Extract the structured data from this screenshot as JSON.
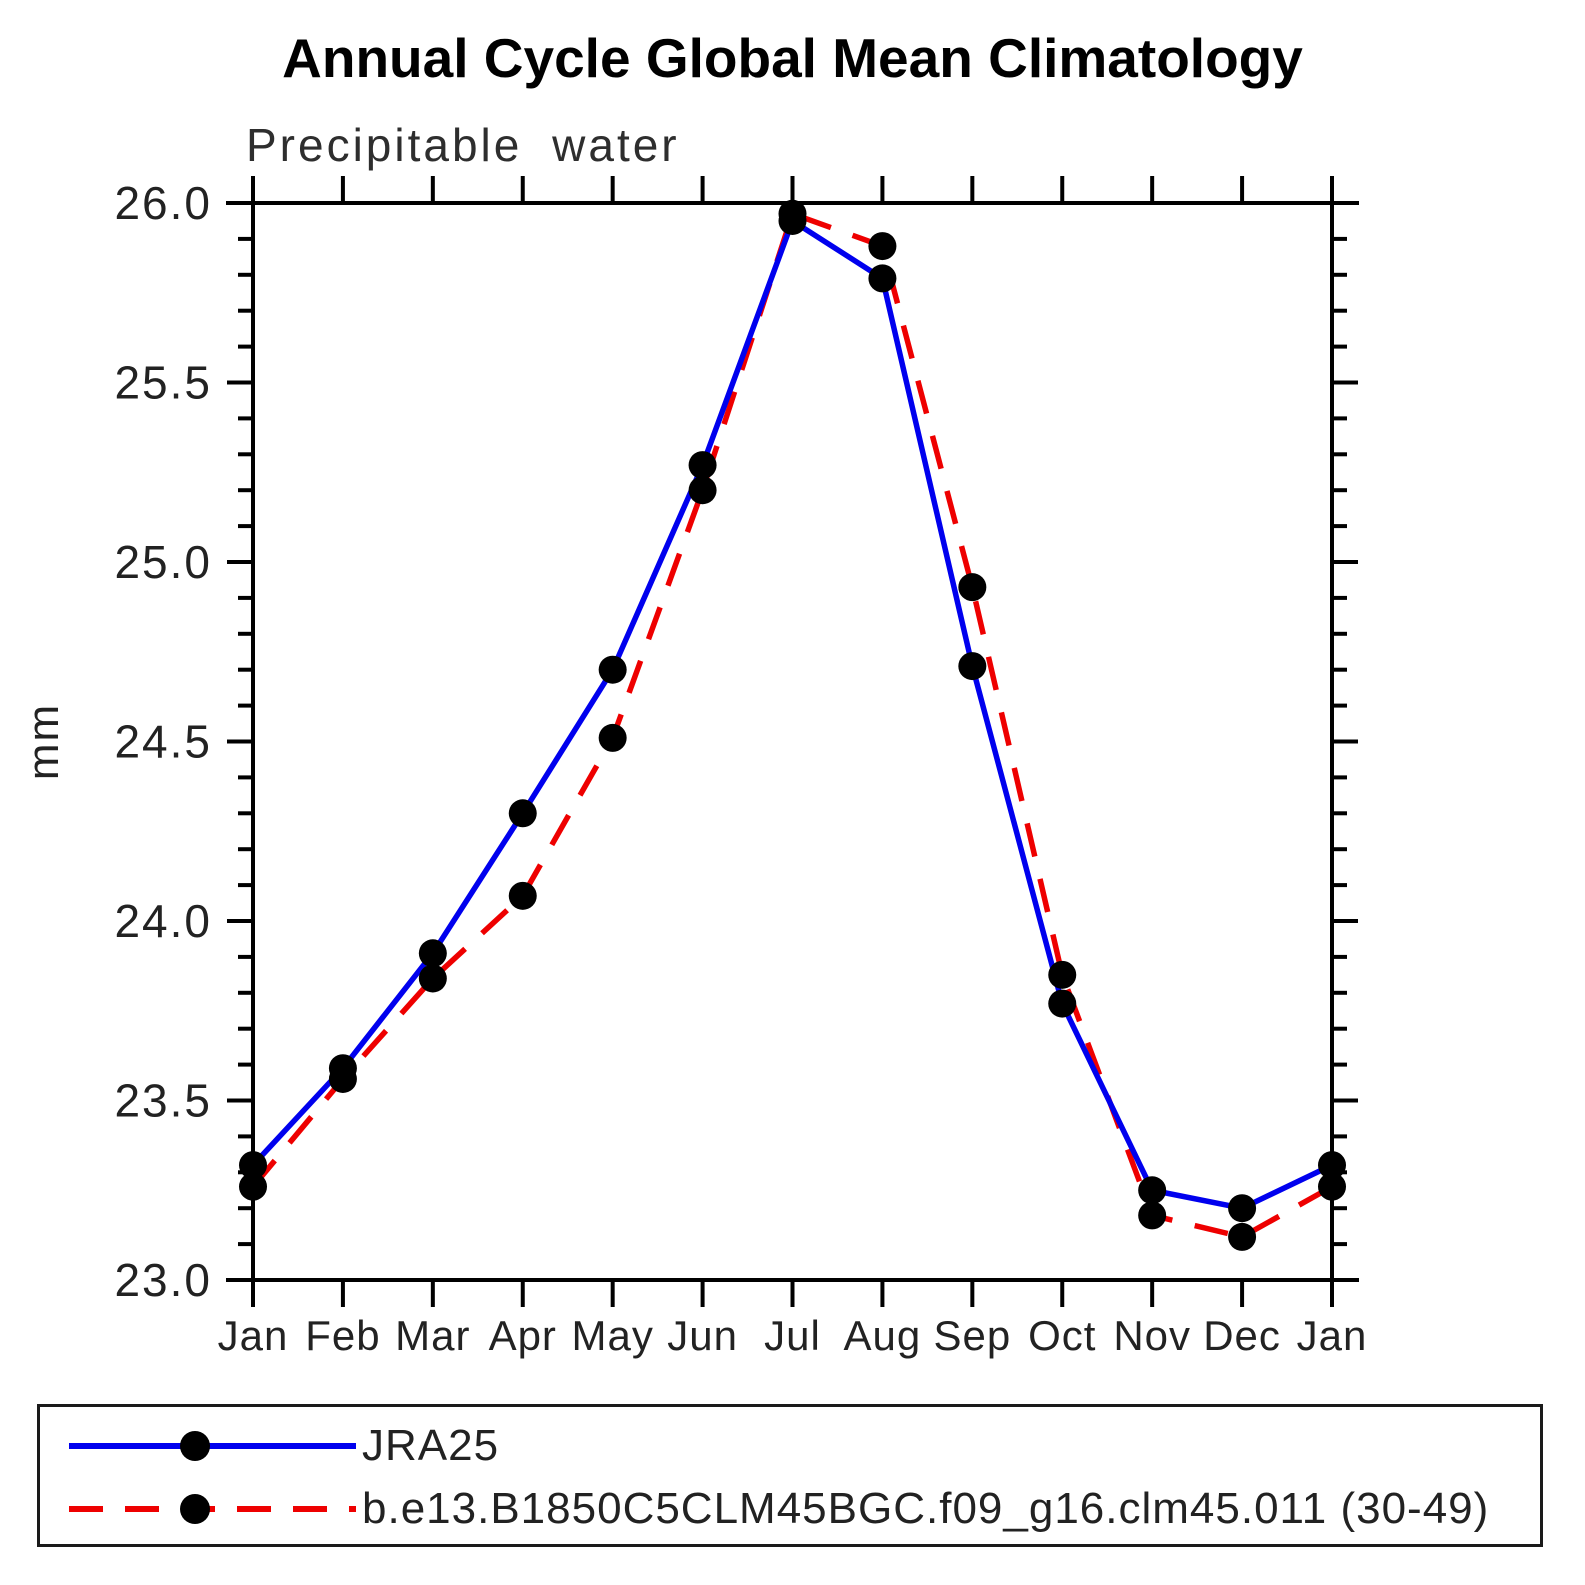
{
  "title": "Annual Cycle Global Mean Climatology",
  "subtitle": "Precipitable water",
  "y_axis_title": "mm",
  "chart_data": {
    "type": "line",
    "categories": [
      "Jan",
      "Feb",
      "Mar",
      "Apr",
      "May",
      "Jun",
      "Jul",
      "Aug",
      "Sep",
      "Oct",
      "Nov",
      "Dec",
      "Jan"
    ],
    "series": [
      {
        "name": "JRA25",
        "color": "#0000ee",
        "line_style": "solid",
        "marker": "filled-black-circle",
        "values": [
          23.32,
          23.59,
          23.91,
          24.3,
          24.7,
          25.27,
          25.95,
          25.79,
          24.71,
          23.77,
          23.25,
          23.2,
          23.32
        ]
      },
      {
        "name": "b.e13.B1850C5CLM45BGC.f09_g16.clm45.011 (30-49)",
        "color": "#ee0000",
        "line_style": "dashed",
        "marker": "filled-black-circle",
        "values": [
          23.26,
          23.56,
          23.84,
          24.07,
          24.51,
          25.2,
          25.97,
          25.88,
          24.93,
          23.85,
          23.18,
          23.12,
          23.26
        ]
      }
    ],
    "xlabel": "",
    "ylabel": "mm",
    "ylim": [
      23.0,
      26.0
    ],
    "ytick_major_interval": 0.5,
    "ytick_minor_interval": 0.1,
    "ytick_labels": [
      "26.0",
      "25.5",
      "25.0",
      "24.5",
      "24.0",
      "23.5",
      "23.0"
    ],
    "grid": false,
    "legend_position": "bottom",
    "marker_color": "#000000"
  }
}
